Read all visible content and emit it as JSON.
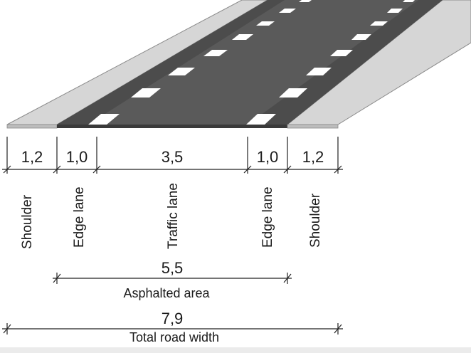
{
  "segments": [
    {
      "width": "1,2",
      "name": "Shoulder"
    },
    {
      "width": "1,0",
      "name": "Edge lane"
    },
    {
      "width": "3,5",
      "name": "Traffic lane"
    },
    {
      "width": "1,0",
      "name": "Edge lane"
    },
    {
      "width": "1,2",
      "name": "Shoulder"
    }
  ],
  "asphalted": {
    "value": "5,5",
    "label": "Asphalted area"
  },
  "total": {
    "value": "7,9",
    "label": "Total road width"
  },
  "colors": {
    "asphalt": "#5a5a5a",
    "edge_lane": "#4a4a4a",
    "shoulder": "#d6d6d6",
    "marking": "#ffffff",
    "line": "#222222"
  }
}
